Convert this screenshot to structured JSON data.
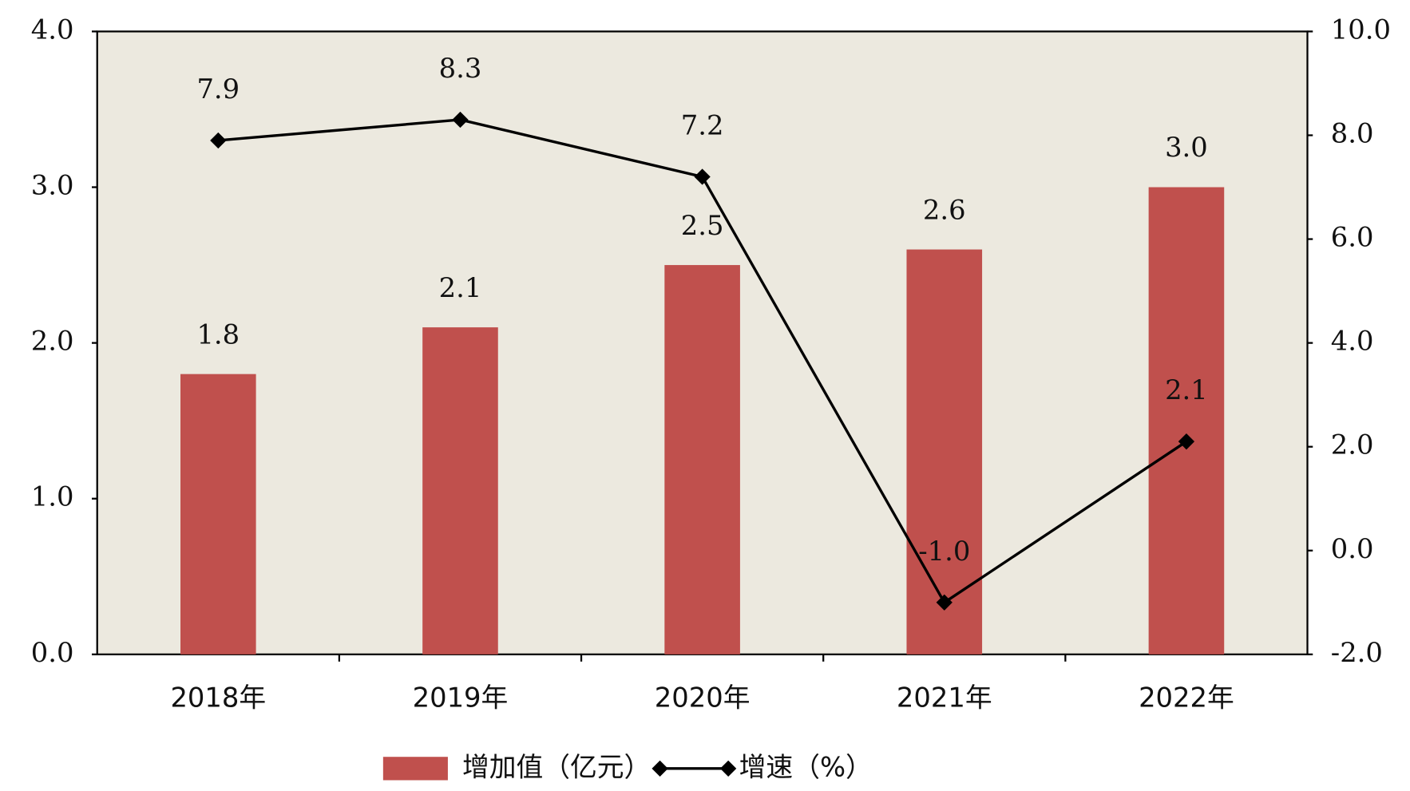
{
  "chart_data": {
    "type": "combo",
    "categories": [
      "2018年",
      "2019年",
      "2020年",
      "2021年",
      "2022年"
    ],
    "series": [
      {
        "name": "增加值（亿元）",
        "type": "bar",
        "color": "#c0504d",
        "values": [
          1.8,
          2.1,
          2.5,
          2.6,
          3.0
        ],
        "value_labels": [
          "1.8",
          "2.1",
          "2.5",
          "2.6",
          "3.0"
        ]
      },
      {
        "name": "增速（%）",
        "type": "line",
        "axis": "y2",
        "color": "#000000",
        "values": [
          7.9,
          8.3,
          7.2,
          -1.0,
          2.1
        ],
        "value_labels": [
          "7.9",
          "8.3",
          "7.2",
          "-1.0",
          "2.1"
        ]
      }
    ],
    "ylim": [
      0,
      4
    ],
    "yticks": [
      {
        "value": 0,
        "label": "0.0"
      },
      {
        "value": 1,
        "label": "1.0"
      },
      {
        "value": 2,
        "label": "2.0"
      },
      {
        "value": 3,
        "label": "3.0"
      },
      {
        "value": 4,
        "label": "4.0"
      }
    ],
    "y2lim": [
      -2,
      10
    ],
    "y2ticks": [
      {
        "value": -2,
        "label": "-2.0"
      },
      {
        "value": 0,
        "label": "0.0"
      },
      {
        "value": 2,
        "label": "2.0"
      },
      {
        "value": 4,
        "label": "4.0"
      },
      {
        "value": 6,
        "label": "6.0"
      },
      {
        "value": 8,
        "label": "8.0"
      },
      {
        "value": 10,
        "label": "10.0"
      }
    ],
    "plot_background": "#ece9df",
    "legend": "bottom"
  }
}
